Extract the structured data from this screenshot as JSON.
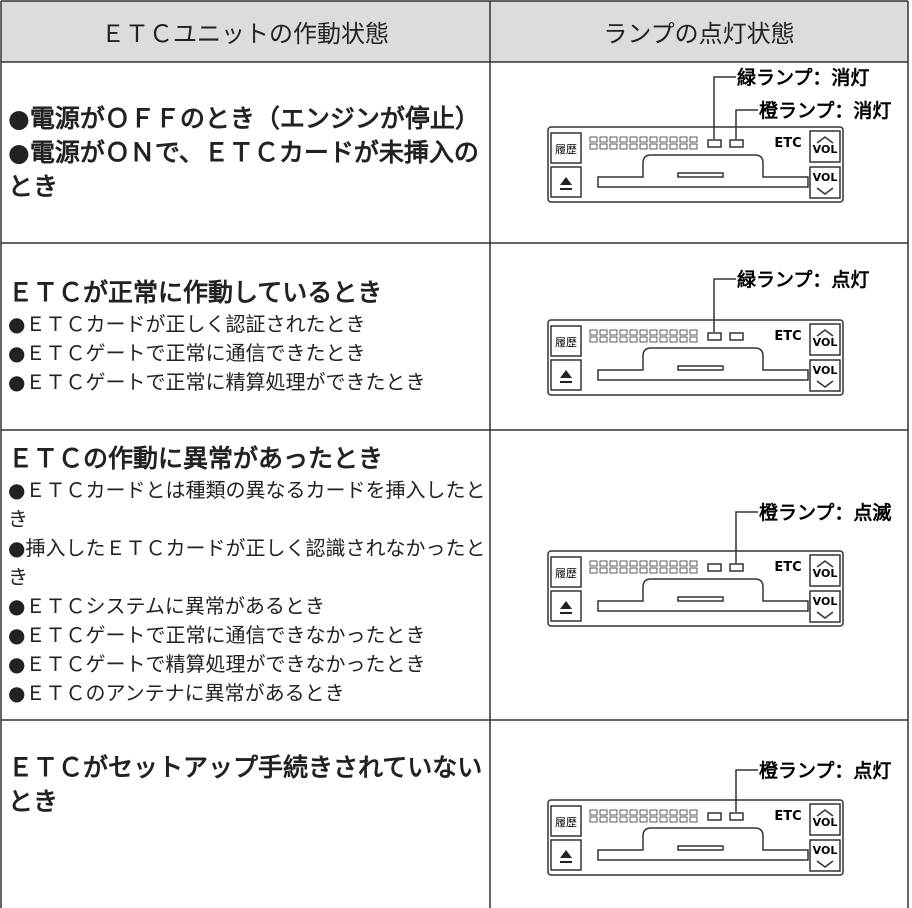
{
  "header": {
    "left": "ＥＴＣユニットの作動状態",
    "right": "ランプの点灯状態"
  },
  "device": {
    "history": "履歴",
    "brand": "ETC",
    "volume": "VOL"
  },
  "rows": [
    {
      "headings": [
        "●電源がＯＦＦのとき（エンジンが停止）",
        "●電源がＯＮで、ＥＴＣカードが未挿入のとき"
      ],
      "items": [],
      "callouts": [
        "緑ランプ：消灯",
        "橙ランプ：消灯"
      ]
    },
    {
      "headings": [
        "ＥＴＣが正常に作動しているとき"
      ],
      "items": [
        "●ＥＴＣカードが正しく認証されたとき",
        "●ＥＴＣゲートで正常に通信できたとき",
        "●ＥＴＣゲートで正常に精算処理ができたとき"
      ],
      "callouts": [
        "緑ランプ：点灯"
      ]
    },
    {
      "headings": [
        "ＥＴＣの作動に異常があったとき"
      ],
      "items": [
        "●ＥＴＣカードとは種類の異なるカードを挿入したとき",
        "●挿入したＥＴＣカードが正しく認識されなかったとき",
        "●ＥＴＣシステムに異常があるとき",
        "●ＥＴＣゲートで正常に通信できなかったとき",
        "●ＥＴＣゲートで精算処理ができなかったとき",
        "●ＥＴＣのアンテナに異常があるとき"
      ],
      "callouts": [
        "橙ランプ：点滅"
      ]
    },
    {
      "headings": [
        "ＥＴＣがセットアップ手続きされていないとき"
      ],
      "items": [],
      "callouts": [
        "橙ランプ：点灯"
      ]
    }
  ]
}
